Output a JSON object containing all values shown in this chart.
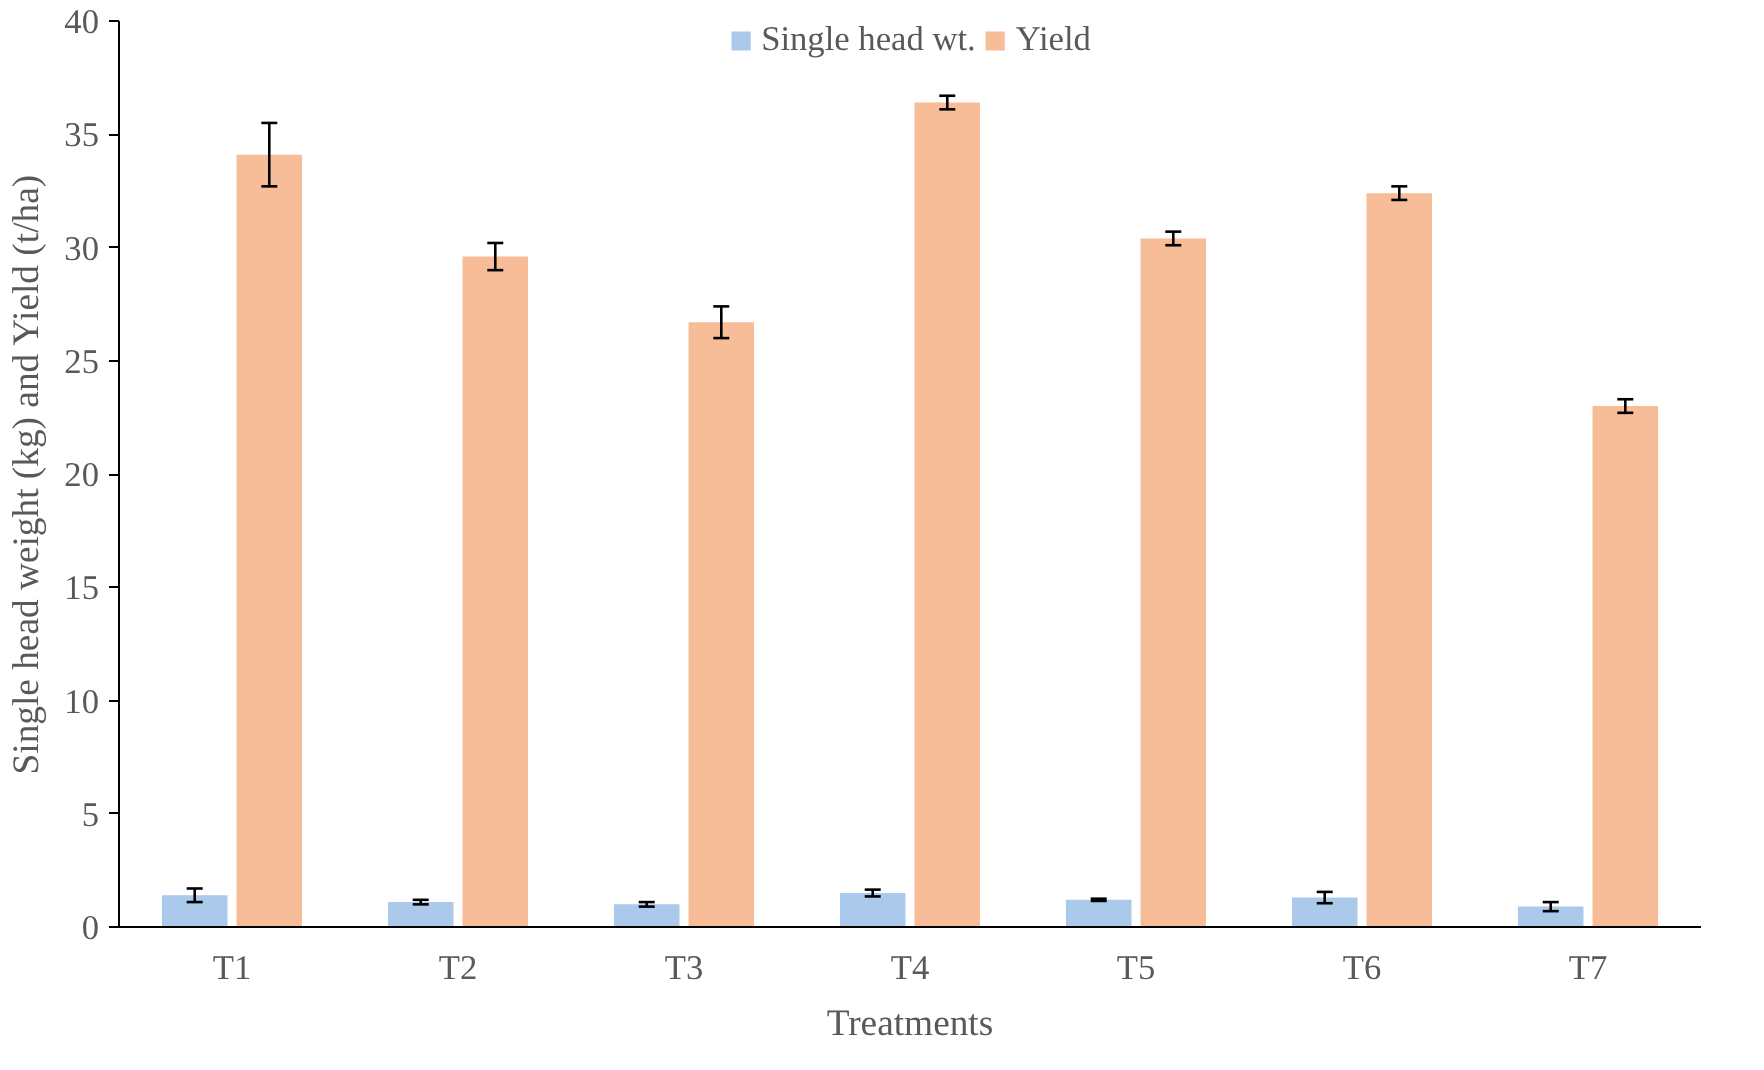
{
  "chart_data": {
    "type": "bar",
    "xlabel": "Treatments",
    "ylabel": "Single head weight (kg) and Yield (t/ha)",
    "categories": [
      "T1",
      "T2",
      "T3",
      "T4",
      "T5",
      "T6",
      "T7"
    ],
    "series": [
      {
        "name": "Single head wt.",
        "color": "#abc9eb",
        "values": [
          1.4,
          1.1,
          1.0,
          1.5,
          1.2,
          1.3,
          0.9
        ],
        "errors": [
          0.3,
          0.1,
          0.1,
          0.15,
          0.05,
          0.25,
          0.2
        ]
      },
      {
        "name": "Yield",
        "color": "#f6bd98",
        "values": [
          34.1,
          29.6,
          26.7,
          36.4,
          30.4,
          32.4,
          23.0
        ],
        "errors": [
          1.4,
          0.6,
          0.7,
          0.3,
          0.3,
          0.3,
          0.3
        ]
      }
    ],
    "ylim": [
      0,
      40
    ],
    "yticks": [
      0,
      5,
      10,
      15,
      20,
      25,
      30,
      35,
      40
    ],
    "grid": false,
    "legend": "top"
  }
}
